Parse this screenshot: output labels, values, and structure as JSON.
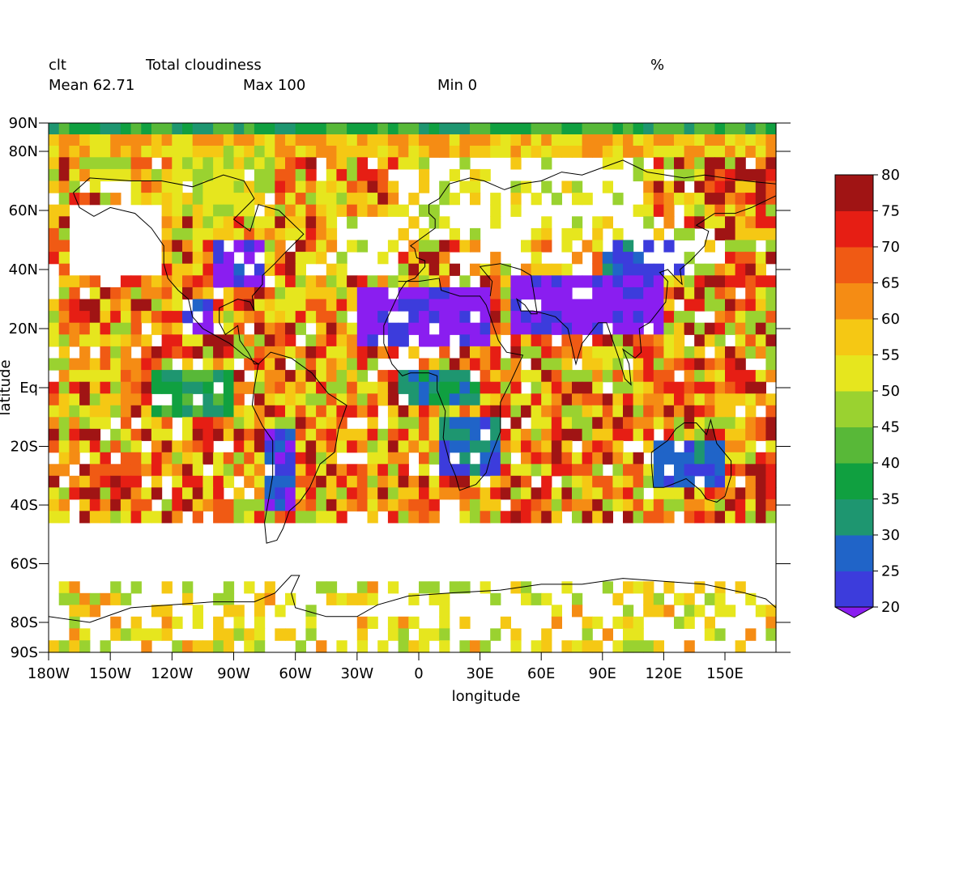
{
  "header": {
    "variable": "clt",
    "long_name": "Total cloudiness",
    "units": "%",
    "mean_label": "Mean 62.71",
    "max_label": "Max 100",
    "min_label": "Min 0"
  },
  "chart_data": {
    "type": "heatmap",
    "xlabel": "longitude",
    "ylabel": "latitude",
    "xlim": [
      -180,
      175
    ],
    "ylim": [
      -90,
      90
    ],
    "x_ticks": [
      {
        "value": -180,
        "label": "180W"
      },
      {
        "value": -150,
        "label": "150W"
      },
      {
        "value": -120,
        "label": "120W"
      },
      {
        "value": -90,
        "label": "90W"
      },
      {
        "value": -60,
        "label": "60W"
      },
      {
        "value": -30,
        "label": "30W"
      },
      {
        "value": 0,
        "label": "0"
      },
      {
        "value": 30,
        "label": "30E"
      },
      {
        "value": 60,
        "label": "60E"
      },
      {
        "value": 90,
        "label": "90E"
      },
      {
        "value": 120,
        "label": "120E"
      },
      {
        "value": 150,
        "label": "150E"
      }
    ],
    "y_ticks": [
      {
        "value": 90,
        "label": "90N"
      },
      {
        "value": 80,
        "label": "80N"
      },
      {
        "value": 60,
        "label": "60N"
      },
      {
        "value": 40,
        "label": "40N"
      },
      {
        "value": 20,
        "label": "20N"
      },
      {
        "value": 0,
        "label": "Eq"
      },
      {
        "value": -20,
        "label": "20S"
      },
      {
        "value": -40,
        "label": "40S"
      },
      {
        "value": -60,
        "label": "60S"
      },
      {
        "value": -80,
        "label": "80S"
      },
      {
        "value": -90,
        "label": "90S"
      }
    ],
    "grid_resolution_deg": [
      5,
      4
    ],
    "colorbar": {
      "min": 20,
      "max": 80,
      "step": 5,
      "tick_labels": [
        "20",
        "25",
        "30",
        "35",
        "40",
        "45",
        "50",
        "55",
        "60",
        "65",
        "70",
        "75",
        "80"
      ],
      "colors": [
        "#8a1ef0",
        "#3c3cdc",
        "#2064c8",
        "#1e9670",
        "#10a040",
        "#58b838",
        "#9ad230",
        "#e6e61e",
        "#f5c814",
        "#f58c14",
        "#f05a14",
        "#e61e14",
        "#a01414"
      ],
      "under_color": "#8a1ef0"
    },
    "approx_field_regions": [
      {
        "lon": [
          -180,
          175
        ],
        "lat": [
          84,
          90
        ],
        "clt": 38
      },
      {
        "lon": [
          -180,
          175
        ],
        "lat": [
          78,
          84
        ],
        "clt": 58
      },
      {
        "lon": [
          -120,
          -70
        ],
        "lat": [
          60,
          80
        ],
        "clt": 52
      },
      {
        "lon": [
          -100,
          -75
        ],
        "lat": [
          36,
          50
        ],
        "clt": 20
      },
      {
        "lon": [
          -115,
          -100
        ],
        "lat": [
          20,
          30
        ],
        "clt": 20
      },
      {
        "lon": [
          -30,
          35
        ],
        "lat": [
          14,
          34
        ],
        "clt": 18
      },
      {
        "lon": [
          45,
          120
        ],
        "lat": [
          18,
          36
        ],
        "clt": 18
      },
      {
        "lon": [
          90,
          130
        ],
        "lat": [
          40,
          50
        ],
        "clt": 28
      },
      {
        "lon": [
          -130,
          -90
        ],
        "lat": [
          -10,
          4
        ],
        "clt": 38
      },
      {
        "lon": [
          -75,
          -60
        ],
        "lat": [
          -40,
          -14
        ],
        "clt": 24
      },
      {
        "lon": [
          10,
          40
        ],
        "lat": [
          -30,
          -10
        ],
        "clt": 28
      },
      {
        "lon": [
          115,
          150
        ],
        "lat": [
          -34,
          -18
        ],
        "clt": 26
      },
      {
        "lon": [
          -10,
          30
        ],
        "lat": [
          -4,
          4
        ],
        "clt": 34
      }
    ]
  }
}
